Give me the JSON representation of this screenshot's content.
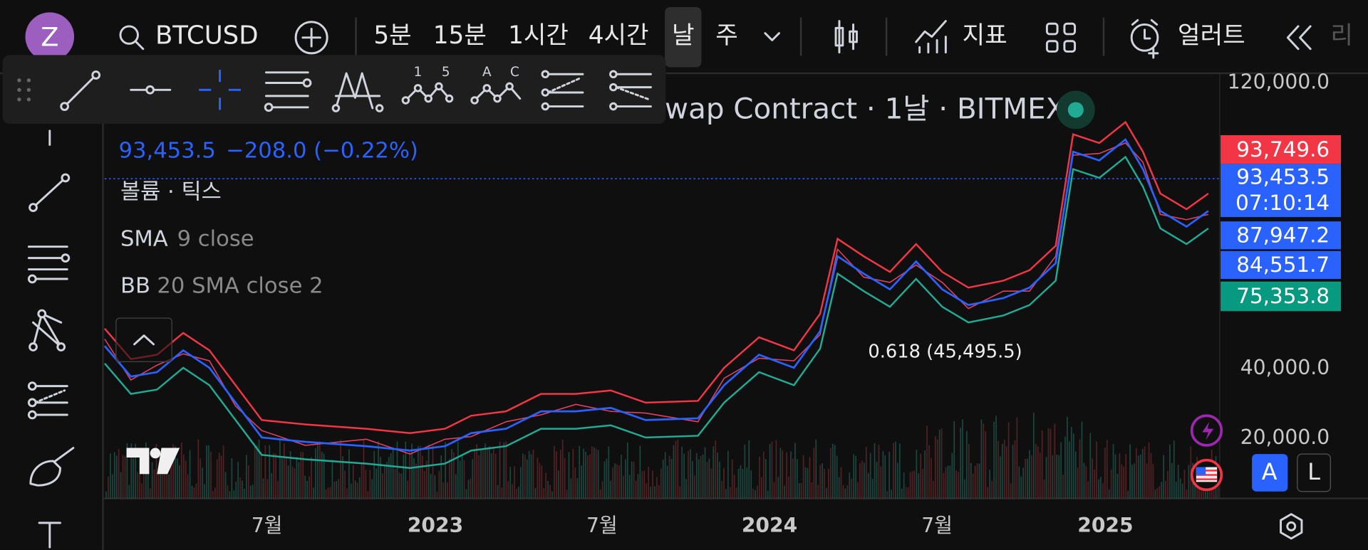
{
  "top_bar": {
    "avatar": "Z",
    "symbol": "BTCUSD",
    "intervals": [
      "5분",
      "15분",
      "1시간",
      "4시간",
      "날",
      "주"
    ],
    "indicators": "지표",
    "alerts": "얼러트",
    "more": "리"
  },
  "drawing_toolbar": {
    "icon_labels": [
      "1",
      "5",
      "A",
      "C"
    ]
  },
  "legend": {
    "title": "wap Contract · 1날 · BITMEX",
    "price": "93,453.5",
    "change": "−208.0 (−0.22%)",
    "volume": "볼륨 · 틱스",
    "sma_name": "SMA",
    "sma_params": "9 close",
    "bb_name": "BB",
    "bb_params": "20 SMA close 2"
  },
  "annotation": "0.618 (45,495.5)",
  "price_axis": {
    "ticks": [
      "120,000.0",
      "40,000.0",
      "20,000.0"
    ],
    "labels": [
      {
        "text": "93,749.6",
        "color": "#f23645"
      },
      {
        "text": "93,453.5",
        "color": "#2962ff"
      },
      {
        "text": "87,947.2",
        "color": "#2962ff"
      },
      {
        "text": "84,551.7",
        "color": "#2962ff"
      },
      {
        "text": "75,353.8",
        "color": "#089981"
      }
    ],
    "countdown": "07:10:14"
  },
  "time_axis": [
    "7월",
    "2023",
    "7월",
    "2024",
    "7월",
    "2025"
  ],
  "scale_buttons": [
    "A",
    "L"
  ]
}
